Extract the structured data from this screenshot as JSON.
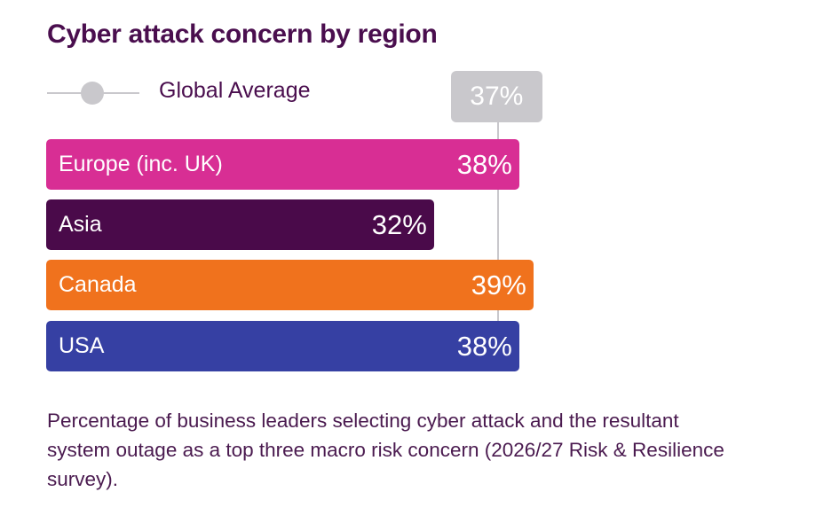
{
  "chart_data": {
    "type": "bar",
    "orientation": "horizontal",
    "title": "Cyber attack concern by region",
    "categories": [
      "Europe (inc. UK)",
      "Asia",
      "Canada",
      "USA"
    ],
    "values": [
      38,
      32,
      39,
      38
    ],
    "value_labels": [
      "38%",
      "32%",
      "39%",
      "38%"
    ],
    "colors": [
      "#d82e94",
      "#4a0a4a",
      "#f0721d",
      "#3640a3"
    ],
    "reference_line": {
      "name": "Global Average",
      "value": 37,
      "label": "37%",
      "color": "#c9c8cc"
    },
    "legend": [
      "Global Average"
    ],
    "legend_position": "top-left",
    "xlabel": "",
    "ylabel": "",
    "grid": false
  },
  "caption": "Percentage of business leaders selecting cyber attack and the resultant system outage as a top three macro risk concern (2026/27 Risk & Resilience survey)."
}
